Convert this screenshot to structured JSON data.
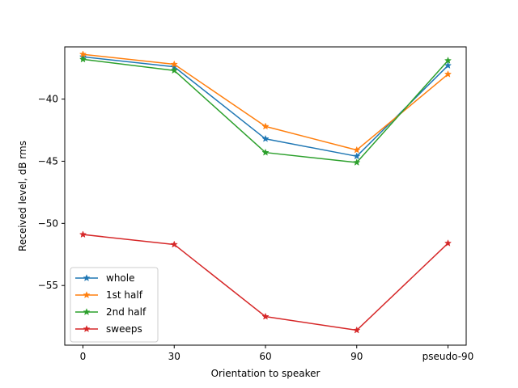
{
  "chart_data": {
    "type": "line",
    "categories": [
      "0",
      "30",
      "60",
      "90",
      "pseudo-90"
    ],
    "xlabel": "Orientation to speaker",
    "ylabel": "Received level, dB rms",
    "ylim": [
      -59.8,
      -35.8
    ],
    "yticks": [
      -40,
      -45,
      -50,
      -55
    ],
    "grid": false,
    "legend_position": "lower-left",
    "marker": "star",
    "series": [
      {
        "name": "whole",
        "color": "#1f77b4",
        "values": [
          -36.6,
          -37.4,
          -43.2,
          -44.6,
          -37.3
        ]
      },
      {
        "name": "1st half",
        "color": "#ff7f0e",
        "values": [
          -36.4,
          -37.2,
          -42.2,
          -44.1,
          -38.0
        ]
      },
      {
        "name": "2nd half",
        "color": "#2ca02c",
        "values": [
          -36.8,
          -37.7,
          -44.3,
          -45.1,
          -36.9
        ]
      },
      {
        "name": "sweeps",
        "color": "#d62728",
        "values": [
          -50.9,
          -51.7,
          -57.5,
          -58.6,
          -51.6
        ]
      }
    ]
  }
}
